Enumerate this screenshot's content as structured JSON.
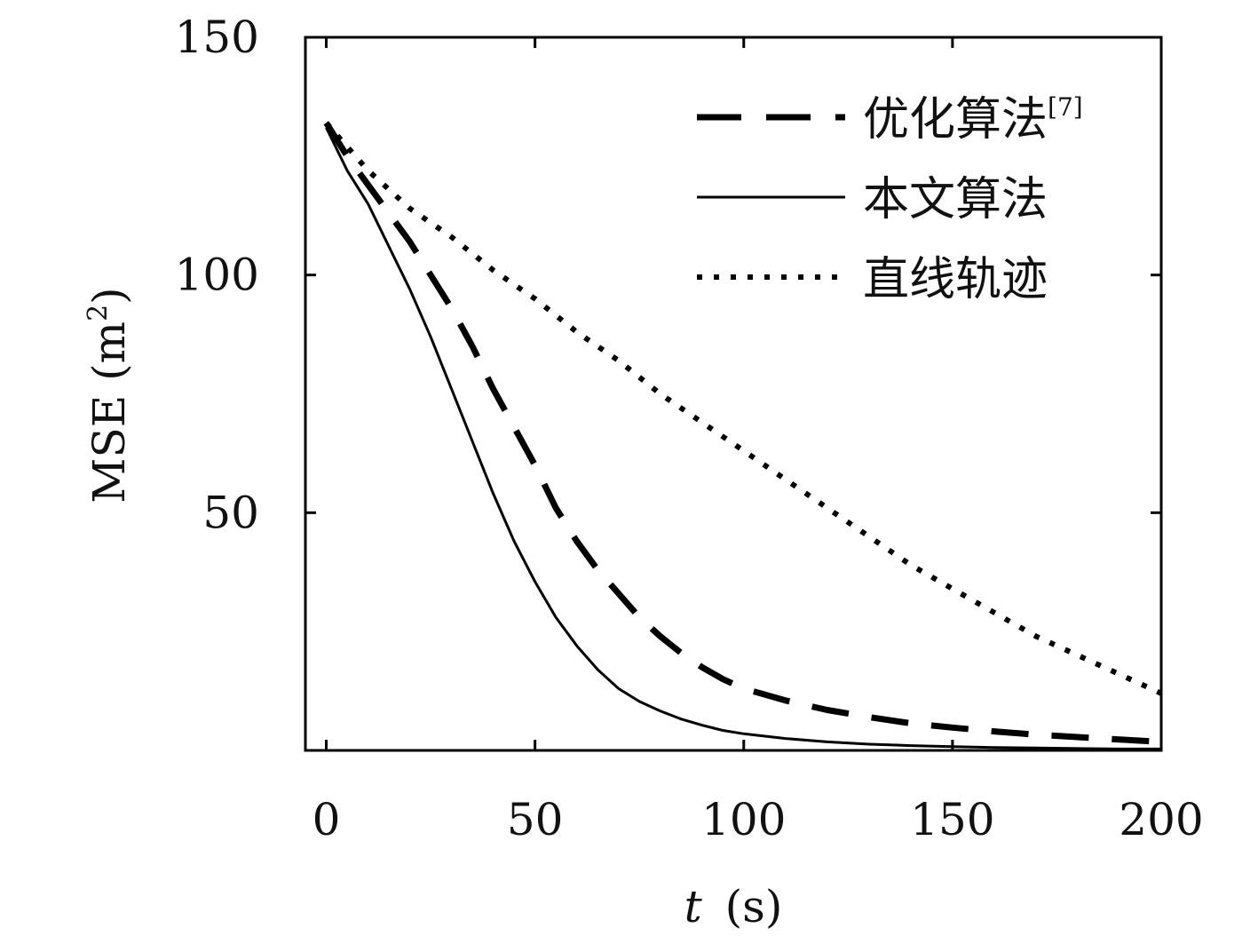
{
  "chart_data": {
    "type": "line",
    "title": "",
    "xlabel": {
      "var": "t",
      "unit": "(s)"
    },
    "ylabel": {
      "text": "MSE (m",
      "sup": "2",
      "close": ")"
    },
    "xlim": [
      -5,
      200
    ],
    "ylim": [
      0,
      150
    ],
    "x_ticks": [
      "0",
      "50",
      "100",
      "150",
      "200"
    ],
    "y_ticks": [
      "50",
      "100",
      "150"
    ],
    "legend_position": "top-right",
    "grid": false,
    "series": [
      {
        "name": "优化算法",
        "name_sup": "[7]",
        "style": "dashed",
        "color": "#000000",
        "points": [
          [
            0,
            132
          ],
          [
            5,
            125
          ],
          [
            10,
            119
          ],
          [
            15,
            113
          ],
          [
            20,
            107
          ],
          [
            25,
            100
          ],
          [
            30,
            93
          ],
          [
            35,
            85
          ],
          [
            40,
            76
          ],
          [
            45,
            68
          ],
          [
            50,
            60
          ],
          [
            55,
            51
          ],
          [
            60,
            44
          ],
          [
            65,
            38
          ],
          [
            70,
            33
          ],
          [
            75,
            28
          ],
          [
            80,
            24
          ],
          [
            85,
            20.5
          ],
          [
            90,
            17.5
          ],
          [
            95,
            15
          ],
          [
            100,
            13
          ],
          [
            110,
            10.5
          ],
          [
            120,
            8.5
          ],
          [
            130,
            7
          ],
          [
            140,
            5.7
          ],
          [
            150,
            4.8
          ],
          [
            160,
            4
          ],
          [
            170,
            3.3
          ],
          [
            180,
            2.8
          ],
          [
            190,
            2.3
          ],
          [
            200,
            1.8
          ]
        ]
      },
      {
        "name": "本文算法",
        "style": "solid",
        "color": "#000000",
        "points": [
          [
            0,
            131
          ],
          [
            5,
            122
          ],
          [
            10,
            115
          ],
          [
            15,
            106
          ],
          [
            20,
            97
          ],
          [
            25,
            87
          ],
          [
            30,
            76
          ],
          [
            35,
            65
          ],
          [
            40,
            54
          ],
          [
            45,
            44
          ],
          [
            50,
            35.5
          ],
          [
            55,
            28
          ],
          [
            60,
            22
          ],
          [
            65,
            17
          ],
          [
            70,
            13
          ],
          [
            75,
            10.3
          ],
          [
            80,
            8.3
          ],
          [
            85,
            6.6
          ],
          [
            90,
            5.3
          ],
          [
            95,
            4.2
          ],
          [
            100,
            3.5
          ],
          [
            110,
            2.5
          ],
          [
            120,
            1.8
          ],
          [
            130,
            1.3
          ],
          [
            140,
            1
          ],
          [
            150,
            0.8
          ],
          [
            160,
            0.6
          ],
          [
            170,
            0.5
          ],
          [
            180,
            0.4
          ],
          [
            190,
            0.3
          ],
          [
            200,
            0.3
          ]
        ]
      },
      {
        "name": "直线轨迹",
        "style": "dotted",
        "color": "#000000",
        "points": [
          [
            0,
            132
          ],
          [
            10,
            122
          ],
          [
            20,
            114
          ],
          [
            30,
            108
          ],
          [
            40,
            101
          ],
          [
            50,
            95
          ],
          [
            60,
            88
          ],
          [
            70,
            82
          ],
          [
            80,
            75
          ],
          [
            90,
            69
          ],
          [
            100,
            63
          ],
          [
            110,
            57
          ],
          [
            120,
            51
          ],
          [
            130,
            45
          ],
          [
            140,
            39
          ],
          [
            150,
            34
          ],
          [
            160,
            29
          ],
          [
            170,
            24
          ],
          [
            180,
            20
          ],
          [
            190,
            16
          ],
          [
            200,
            12
          ]
        ]
      }
    ]
  }
}
